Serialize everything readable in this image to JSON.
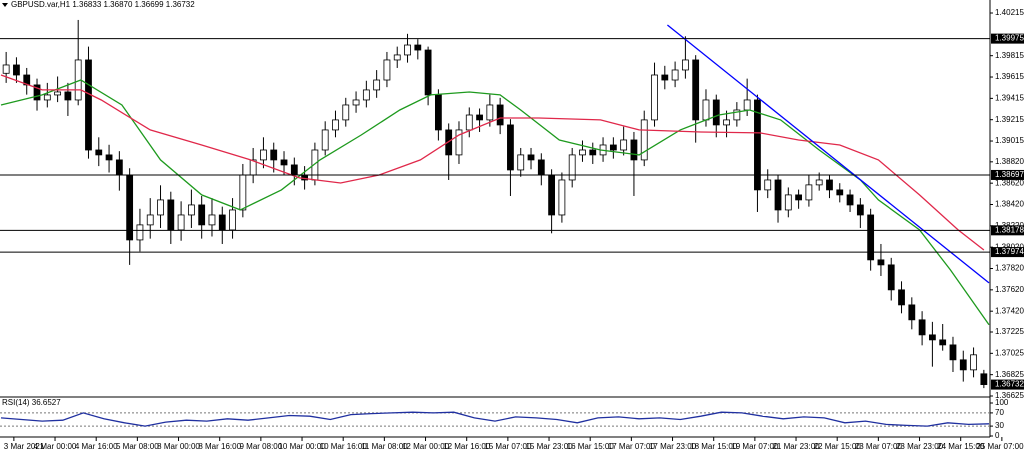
{
  "chart_data": [
    {
      "type": "candlestick",
      "title": "GBPUSD.var,H1 1.36833 1.36870 1.36699 1.36732",
      "color_up": "#ffffff",
      "color_down": "#000000",
      "x": [
        2,
        6,
        10,
        14,
        18,
        22,
        26,
        30,
        34,
        38,
        42,
        46,
        50,
        54,
        58,
        62,
        66,
        70,
        74,
        78,
        82,
        86,
        90,
        94,
        98,
        102,
        106,
        110,
        114,
        118,
        122,
        126,
        130,
        134,
        138,
        142,
        146,
        150,
        154,
        158,
        162,
        166,
        170,
        174,
        178,
        182,
        186,
        190,
        194,
        198,
        202,
        206,
        210,
        214,
        218,
        222,
        226,
        230,
        234,
        238,
        242,
        246,
        250,
        254,
        258,
        262,
        266,
        270,
        274,
        278,
        282,
        286,
        290,
        294,
        298,
        302,
        306,
        310,
        314,
        318,
        322,
        326,
        330,
        334,
        338,
        342,
        346,
        350,
        354,
        358,
        362,
        366,
        370,
        374,
        378,
        382
      ],
      "ohlc": [
        [
          1.3965,
          1.3985,
          1.3956,
          1.39728
        ],
        [
          1.39728,
          1.398,
          1.3956,
          1.39634
        ],
        [
          1.39634,
          1.397,
          1.3945,
          1.39541
        ],
        [
          1.39541,
          1.396,
          1.393,
          1.394
        ],
        [
          1.394,
          1.3956,
          1.3933,
          1.39447
        ],
        [
          1.39447,
          1.3962,
          1.3938,
          1.39475
        ],
        [
          1.39475,
          1.3956,
          1.3925,
          1.394
        ],
        [
          1.394,
          1.4015,
          1.3935,
          1.39775
        ],
        [
          1.39775,
          1.399,
          1.3885,
          1.38931
        ],
        [
          1.38931,
          1.3905,
          1.3878,
          1.38885
        ],
        [
          1.38885,
          1.3898,
          1.3872,
          1.38838
        ],
        [
          1.38838,
          1.3892,
          1.3855,
          1.38697
        ],
        [
          1.38697,
          1.3876,
          1.37854,
          1.38088
        ],
        [
          1.38088,
          1.3838,
          1.3798,
          1.38229
        ],
        [
          1.38229,
          1.3848,
          1.381,
          1.38322
        ],
        [
          1.38322,
          1.386,
          1.382,
          1.38463
        ],
        [
          1.38463,
          1.3854,
          1.3805,
          1.38182
        ],
        [
          1.38182,
          1.3845,
          1.3808,
          1.38322
        ],
        [
          1.38322,
          1.3856,
          1.382,
          1.38416
        ],
        [
          1.38416,
          1.385,
          1.381,
          1.38229
        ],
        [
          1.38229,
          1.3848,
          1.3812,
          1.38322
        ],
        [
          1.38322,
          1.384,
          1.3805,
          1.38182
        ],
        [
          1.38182,
          1.3848,
          1.381,
          1.38369
        ],
        [
          1.38369,
          1.388,
          1.383,
          1.38697
        ],
        [
          1.38697,
          1.3895,
          1.3862,
          1.38838
        ],
        [
          1.38838,
          1.3905,
          1.3876,
          1.38931
        ],
        [
          1.38931,
          1.39,
          1.3872,
          1.38838
        ],
        [
          1.38838,
          1.3892,
          1.387,
          1.38791
        ],
        [
          1.38791,
          1.3886,
          1.386,
          1.38697
        ],
        [
          1.38697,
          1.3878,
          1.3856,
          1.3865
        ],
        [
          1.3865,
          1.39,
          1.386,
          1.38931
        ],
        [
          1.38931,
          1.392,
          1.3888,
          1.39119
        ],
        [
          1.39119,
          1.393,
          1.3905,
          1.39213
        ],
        [
          1.39213,
          1.3942,
          1.3915,
          1.39353
        ],
        [
          1.39353,
          1.3948,
          1.3928,
          1.394
        ],
        [
          1.394,
          1.3958,
          1.3933,
          1.39494
        ],
        [
          1.39494,
          1.3968,
          1.3942,
          1.39587
        ],
        [
          1.39587,
          1.3985,
          1.3952,
          1.39775
        ],
        [
          1.39775,
          1.399,
          1.397,
          1.39822
        ],
        [
          1.39822,
          1.4002,
          1.3975,
          1.39915
        ],
        [
          1.39915,
          1.3997,
          1.3978,
          1.39868
        ],
        [
          1.39868,
          1.399,
          1.3935,
          1.39447
        ],
        [
          1.39447,
          1.395,
          1.3902,
          1.39119
        ],
        [
          1.39119,
          1.3918,
          1.3865,
          1.38885
        ],
        [
          1.38885,
          1.392,
          1.388,
          1.39119
        ],
        [
          1.39119,
          1.3933,
          1.3905,
          1.39259
        ],
        [
          1.39259,
          1.3932,
          1.391,
          1.39213
        ],
        [
          1.39213,
          1.3945,
          1.3915,
          1.39353
        ],
        [
          1.39353,
          1.3942,
          1.3908,
          1.39166
        ],
        [
          1.39166,
          1.3922,
          1.385,
          1.38744
        ],
        [
          1.38744,
          1.3895,
          1.3868,
          1.38885
        ],
        [
          1.38885,
          1.3895,
          1.3875,
          1.38838
        ],
        [
          1.38838,
          1.389,
          1.386,
          1.38697
        ],
        [
          1.38697,
          1.3875,
          1.3815,
          1.38322
        ],
        [
          1.38322,
          1.3872,
          1.3825,
          1.3865
        ],
        [
          1.3865,
          1.3895,
          1.3858,
          1.38885
        ],
        [
          1.38885,
          1.3902,
          1.3882,
          1.38931
        ],
        [
          1.38931,
          1.39,
          1.388,
          1.38885
        ],
        [
          1.38885,
          1.3905,
          1.3882,
          1.38978
        ],
        [
          1.38978,
          1.3905,
          1.3885,
          1.38931
        ],
        [
          1.38931,
          1.3915,
          1.3888,
          1.39025
        ],
        [
          1.39025,
          1.391,
          1.385,
          1.38838
        ],
        [
          1.38838,
          1.393,
          1.3878,
          1.39213
        ],
        [
          1.39213,
          1.3975,
          1.3915,
          1.39634
        ],
        [
          1.39634,
          1.3972,
          1.395,
          1.39587
        ],
        [
          1.39587,
          1.3976,
          1.3952,
          1.39681
        ],
        [
          1.39681,
          1.39997,
          1.396,
          1.39775
        ],
        [
          1.39775,
          1.3982,
          1.39,
          1.39213
        ],
        [
          1.39213,
          1.395,
          1.3915,
          1.394
        ],
        [
          1.394,
          1.3945,
          1.3905,
          1.39166
        ],
        [
          1.39166,
          1.393,
          1.3905,
          1.39213
        ],
        [
          1.39213,
          1.3938,
          1.3915,
          1.39306
        ],
        [
          1.39306,
          1.396,
          1.3925,
          1.394
        ],
        [
          1.394,
          1.3945,
          1.3835,
          1.38557
        ],
        [
          1.38557,
          1.3875,
          1.3848,
          1.3865
        ],
        [
          1.3865,
          1.387,
          1.3825,
          1.38369
        ],
        [
          1.38369,
          1.3858,
          1.383,
          1.3851
        ],
        [
          1.3851,
          1.3856,
          1.3838,
          1.38463
        ],
        [
          1.38463,
          1.387,
          1.384,
          1.38604
        ],
        [
          1.38604,
          1.3872,
          1.3855,
          1.3865
        ],
        [
          1.3865,
          1.387,
          1.3848,
          1.38557
        ],
        [
          1.38557,
          1.3862,
          1.3844,
          1.3851
        ],
        [
          1.3851,
          1.3856,
          1.3835,
          1.38416
        ],
        [
          1.38416,
          1.3848,
          1.382,
          1.38322
        ],
        [
          1.38322,
          1.3838,
          1.378,
          1.37901
        ],
        [
          1.37901,
          1.3805,
          1.3775,
          1.37854
        ],
        [
          1.37854,
          1.3792,
          1.3752,
          1.3762
        ],
        [
          1.3762,
          1.377,
          1.374,
          1.37479
        ],
        [
          1.37479,
          1.3755,
          1.3725,
          1.37339
        ],
        [
          1.37339,
          1.3742,
          1.371,
          1.37198
        ],
        [
          1.37198,
          1.3732,
          1.369,
          1.37151
        ],
        [
          1.37151,
          1.373,
          1.3705,
          1.37104
        ],
        [
          1.37104,
          1.3718,
          1.3685,
          1.36964
        ],
        [
          1.36964,
          1.3705,
          1.3676,
          1.3687
        ],
        [
          1.3687,
          1.3708,
          1.368,
          1.37011
        ],
        [
          1.36833,
          1.3687,
          1.36699,
          1.36732
        ]
      ],
      "series": [
        {
          "color": "#1e9a1e",
          "x": [
            0,
            16,
            31,
            47,
            62,
            78,
            93,
            109,
            124,
            140,
            155,
            167,
            182,
            194,
            202,
            217,
            233,
            248,
            264,
            279,
            291,
            303,
            318,
            334,
            341,
            357,
            369,
            384
          ],
          "values": [
            1.39353,
            1.39447,
            1.39587,
            1.39353,
            1.38838,
            1.3851,
            1.38369,
            1.38557,
            1.38838,
            1.39072,
            1.39306,
            1.39447,
            1.39475,
            1.39447,
            1.39306,
            1.39025,
            1.38931,
            1.38885,
            1.39119,
            1.39259,
            1.39306,
            1.39213,
            1.38931,
            1.3865,
            1.38463,
            1.38182,
            1.37807,
            1.37292
          ]
        },
        {
          "color": "#e0284a",
          "x": [
            0,
            16,
            31,
            39,
            58,
            78,
            97,
            116,
            132,
            147,
            163,
            178,
            194,
            209,
            233,
            248,
            272,
            295,
            310,
            326,
            341,
            357,
            372,
            382
          ],
          "values": [
            1.39634,
            1.39494,
            1.39494,
            1.394,
            1.39119,
            1.38978,
            1.38838,
            1.38669,
            1.38622,
            1.38697,
            1.38838,
            1.39072,
            1.39231,
            1.39231,
            1.39213,
            1.39119,
            1.391,
            1.39091,
            1.39025,
            1.38978,
            1.38838,
            1.3851,
            1.38182,
            1.37994
          ]
        }
      ],
      "trendline": {
        "color": "#0000ff",
        "x": [
          259,
          384
        ],
        "values": [
          1.40103,
          1.37685
        ]
      },
      "levels": [
        1.39975,
        1.38697,
        1.38178,
        1.37974
      ],
      "last_price": 1.36732,
      "xlim": [
        0,
        384
      ],
      "xticks": [
        {
          "value": 5,
          "label": "3 Mar 2021"
        },
        {
          "value": 21,
          "label": "4 Mar 00:00"
        },
        {
          "value": 37,
          "label": "4 Mar 16:00"
        },
        {
          "value": 53,
          "label": "5 Mar 08:00"
        },
        {
          "value": 69,
          "label": "8 Mar 00:00"
        },
        {
          "value": 85,
          "label": "8 Mar 16:00"
        },
        {
          "value": 101,
          "label": "9 Mar 08:00"
        },
        {
          "value": 117,
          "label": "10 Mar 00:00"
        },
        {
          "value": 133,
          "label": "10 Mar 16:00"
        },
        {
          "value": 149,
          "label": "11 Mar 08:00"
        },
        {
          "value": 165,
          "label": "12 Mar 00:00"
        },
        {
          "value": 181,
          "label": "12 Mar 16:00"
        },
        {
          "value": 197,
          "label": "15 Mar 07:00"
        },
        {
          "value": 213,
          "label": "15 Mar 23:00"
        },
        {
          "value": 229,
          "label": "16 Mar 15:00"
        },
        {
          "value": 245,
          "label": "17 Mar 07:00"
        },
        {
          "value": 261,
          "label": "17 Mar 23:00"
        },
        {
          "value": 277,
          "label": "18 Mar 15:00"
        },
        {
          "value": 293,
          "label": "19 Mar 07:00"
        },
        {
          "value": 309,
          "label": "21 Mar 23:00"
        },
        {
          "value": 325,
          "label": "22 Mar 15:00"
        },
        {
          "value": 341,
          "label": "23 Mar 07:00"
        },
        {
          "value": 357,
          "label": "23 Mar 23:00"
        },
        {
          "value": 373,
          "label": "24 Mar 15:00"
        },
        {
          "value": 389,
          "label": "25 Mar 07:00"
        }
      ],
      "ylim": [
        1.36625,
        1.40337
      ],
      "yticks": [
        1.40215,
        1.39815,
        1.39615,
        1.39415,
        1.39215,
        1.39015,
        {
          "value": 1.3882,
          "label": "1.38820"
        },
        {
          "value": 1.3862,
          "label": "1.38620"
        },
        {
          "value": 1.3842,
          "label": "1.38420"
        },
        {
          "value": 1.3822,
          "label": "1.38220"
        },
        {
          "value": 1.3802,
          "label": "1.38020"
        },
        {
          "value": 1.3782,
          "label": "1.37820"
        },
        {
          "value": 1.3762,
          "label": "1.37620"
        },
        {
          "value": 1.3742,
          "label": "1.37420"
        },
        1.37225,
        1.37025,
        1.36825,
        1.36625
      ]
    },
    {
      "type": "line",
      "title": "RSI(14) 36.6527",
      "color": "#2030a0",
      "x": [
        0,
        8,
        16,
        24,
        32,
        40,
        48,
        56,
        64,
        72,
        80,
        88,
        96,
        104,
        112,
        120,
        128,
        136,
        144,
        152,
        160,
        168,
        176,
        184,
        192,
        200,
        208,
        216,
        224,
        232,
        240,
        248,
        256,
        264,
        272,
        280,
        288,
        296,
        304,
        312,
        320,
        328,
        336,
        344,
        352,
        360,
        368,
        376,
        384
      ],
      "values": [
        55,
        50,
        45,
        48,
        70,
        52,
        40,
        30,
        42,
        48,
        45,
        52,
        48,
        55,
        62,
        60,
        50,
        65,
        68,
        70,
        72,
        70,
        72,
        55,
        45,
        58,
        55,
        50,
        40,
        55,
        58,
        52,
        55,
        50,
        60,
        72,
        70,
        60,
        52,
        58,
        55,
        40,
        45,
        35,
        32,
        30,
        40,
        35,
        37
      ],
      "xlim": [
        0,
        384
      ],
      "ylim": [
        0,
        100
      ],
      "yticks": [
        0,
        30,
        70,
        100
      ],
      "levels": [
        30,
        70
      ]
    }
  ]
}
